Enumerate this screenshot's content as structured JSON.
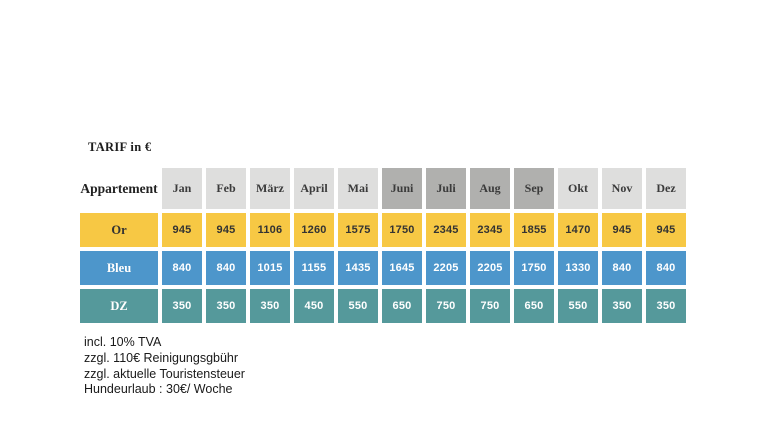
{
  "title": "TARIF in €",
  "table": {
    "corner_header": "Appartement",
    "months": [
      "Jan",
      "Feb",
      "März",
      "April",
      "Mai",
      "Juni",
      "Juli",
      "Aug",
      "Sep",
      "Okt",
      "Nov",
      "Dez"
    ],
    "shaded_months": [
      "Juni",
      "Juli",
      "Aug",
      "Sep"
    ],
    "rows": [
      {
        "label": "Or",
        "bg": "#f7c844",
        "fg": "#333333",
        "values": [
          "945",
          "945",
          "1106",
          "1260",
          "1575",
          "1750",
          "2345",
          "2345",
          "1855",
          "1470",
          "945",
          "945"
        ]
      },
      {
        "label": "Bleu",
        "bg": "#4d96cb",
        "fg": "#ffffff",
        "values": [
          "840",
          "840",
          "1015",
          "1155",
          "1435",
          "1645",
          "2205",
          "2205",
          "1750",
          "1330",
          "840",
          "840"
        ]
      },
      {
        "label": "DZ",
        "bg": "#55999b",
        "fg": "#ffffff",
        "values": [
          "350",
          "350",
          "350",
          "450",
          "550",
          "650",
          "750",
          "750",
          "650",
          "550",
          "350",
          "350"
        ]
      }
    ]
  },
  "footnotes": [
    "incl. 10% TVA",
    "zzgl. 110€ Reinigungsgbühr",
    "zzgl. aktuelle Touristensteuer",
    "Hundeurlaub : 30€/ Woche"
  ],
  "colors": {
    "page_bg": "#ffffff",
    "month_header_bg": "#dededd",
    "month_header_shaded_bg": "#b0b0ae",
    "header_text": "#3b3b3b",
    "accent_yellow": "#f7c844",
    "accent_blue": "#4d96cb",
    "accent_teal": "#55999b"
  },
  "chart_data": {
    "type": "table",
    "title": "TARIF in €",
    "categories": [
      "Jan",
      "Feb",
      "März",
      "April",
      "Mai",
      "Juni",
      "Juli",
      "Aug",
      "Sep",
      "Okt",
      "Nov",
      "Dez"
    ],
    "series": [
      {
        "name": "Or",
        "values": [
          945,
          945,
          1106,
          1260,
          1575,
          1750,
          2345,
          2345,
          1855,
          1470,
          945,
          945
        ]
      },
      {
        "name": "Bleu",
        "values": [
          840,
          840,
          1015,
          1155,
          1435,
          1645,
          2205,
          2205,
          1750,
          1330,
          840,
          840
        ]
      },
      {
        "name": "DZ",
        "values": [
          350,
          350,
          350,
          450,
          550,
          650,
          750,
          750,
          650,
          550,
          350,
          350
        ]
      }
    ]
  }
}
